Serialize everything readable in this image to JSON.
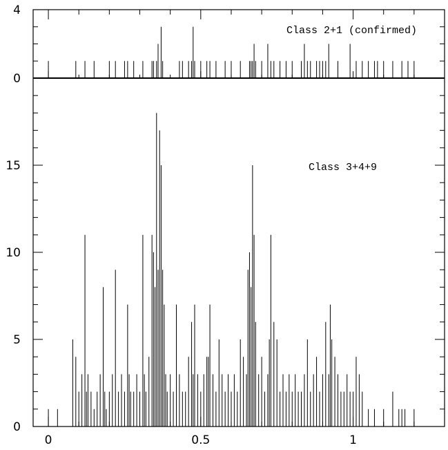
{
  "chart_data": [
    {
      "panel": "top",
      "type": "bar",
      "title": "",
      "annotation": "Class 2+1 (confirmed)",
      "xlabel": "",
      "ylabel": "",
      "xlim": [
        -0.05,
        1.3
      ],
      "ylim": [
        0,
        4
      ],
      "y_tick_labels": [
        "0",
        "4"
      ],
      "x": [
        0.0,
        0.09,
        0.12,
        0.15,
        0.2,
        0.22,
        0.25,
        0.26,
        0.28,
        0.31,
        0.34,
        0.345,
        0.355,
        0.36,
        0.37,
        0.375,
        0.43,
        0.44,
        0.46,
        0.47,
        0.475,
        0.48,
        0.5,
        0.52,
        0.53,
        0.55,
        0.58,
        0.6,
        0.63,
        0.66,
        0.665,
        0.67,
        0.675,
        0.68,
        0.7,
        0.72,
        0.73,
        0.74,
        0.76,
        0.78,
        0.8,
        0.83,
        0.84,
        0.85,
        0.86,
        0.88,
        0.89,
        0.9,
        0.91,
        0.92,
        0.95,
        0.99,
        1.01,
        1.03,
        1.05,
        1.07,
        1.08,
        1.1,
        1.13,
        1.16,
        1.18,
        1.2
      ],
      "values": [
        1,
        1,
        1,
        1,
        1,
        1,
        1,
        1,
        1,
        1,
        1,
        1,
        1,
        2,
        3,
        1,
        1,
        1,
        1,
        1,
        3,
        1,
        1,
        1,
        1,
        1,
        1,
        1,
        1,
        1,
        1,
        1,
        2,
        1,
        1,
        2,
        1,
        1,
        1,
        1,
        1,
        1,
        2,
        1,
        1,
        1,
        1,
        1,
        1,
        2,
        1,
        2,
        1,
        1,
        1,
        1,
        1,
        1,
        1,
        1,
        1,
        1
      ]
    },
    {
      "panel": "bottom",
      "type": "bar",
      "title": "",
      "annotation": "Class 3+4+9",
      "xlabel": "",
      "ylabel": "",
      "xlim": [
        -0.05,
        1.3
      ],
      "ylim": [
        0,
        20
      ],
      "x_tick_labels": [
        "0",
        "0.5",
        "1"
      ],
      "y_tick_labels": [
        "0",
        "5",
        "10",
        "15"
      ],
      "x": [
        0.0,
        0.03,
        0.08,
        0.09,
        0.1,
        0.11,
        0.12,
        0.125,
        0.13,
        0.14,
        0.15,
        0.16,
        0.17,
        0.18,
        0.185,
        0.19,
        0.2,
        0.21,
        0.22,
        0.23,
        0.24,
        0.25,
        0.26,
        0.265,
        0.27,
        0.28,
        0.29,
        0.3,
        0.31,
        0.315,
        0.32,
        0.33,
        0.34,
        0.345,
        0.35,
        0.355,
        0.36,
        0.365,
        0.37,
        0.375,
        0.38,
        0.385,
        0.39,
        0.4,
        0.41,
        0.42,
        0.43,
        0.44,
        0.45,
        0.46,
        0.47,
        0.475,
        0.48,
        0.49,
        0.5,
        0.51,
        0.52,
        0.525,
        0.53,
        0.54,
        0.55,
        0.56,
        0.57,
        0.58,
        0.59,
        0.6,
        0.61,
        0.62,
        0.63,
        0.64,
        0.65,
        0.655,
        0.66,
        0.665,
        0.67,
        0.675,
        0.68,
        0.69,
        0.7,
        0.71,
        0.72,
        0.725,
        0.73,
        0.74,
        0.75,
        0.76,
        0.77,
        0.78,
        0.79,
        0.8,
        0.81,
        0.82,
        0.83,
        0.84,
        0.85,
        0.86,
        0.87,
        0.88,
        0.89,
        0.9,
        0.91,
        0.92,
        0.925,
        0.93,
        0.94,
        0.95,
        0.96,
        0.97,
        0.98,
        0.99,
        1.0,
        1.01,
        1.02,
        1.03,
        1.05,
        1.07,
        1.1,
        1.13,
        1.15,
        1.16,
        1.17,
        1.2
      ],
      "values": [
        1,
        1,
        5,
        4,
        2,
        3,
        11,
        2,
        3,
        2,
        1,
        2,
        3,
        8,
        2,
        1,
        2,
        3,
        9,
        2,
        3,
        2,
        7,
        3,
        2,
        2,
        3,
        2,
        11,
        3,
        2,
        4,
        11,
        10,
        8,
        18,
        9,
        17,
        15,
        9,
        7,
        3,
        2,
        3,
        2,
        7,
        3,
        2,
        2,
        4,
        6,
        3,
        7,
        3,
        2,
        3,
        4,
        4,
        7,
        3,
        2,
        5,
        3,
        2,
        3,
        2,
        3,
        2,
        5,
        4,
        3,
        9,
        10,
        8,
        15,
        11,
        6,
        3,
        4,
        2,
        3,
        5,
        11,
        6,
        5,
        2,
        3,
        2,
        3,
        2,
        3,
        2,
        2,
        3,
        5,
        2,
        3,
        4,
        2,
        3,
        6,
        3,
        7,
        5,
        4,
        3,
        2,
        2,
        3,
        2,
        2,
        4,
        3,
        2,
        1,
        1,
        1,
        2,
        1,
        1,
        1,
        1
      ]
    }
  ]
}
